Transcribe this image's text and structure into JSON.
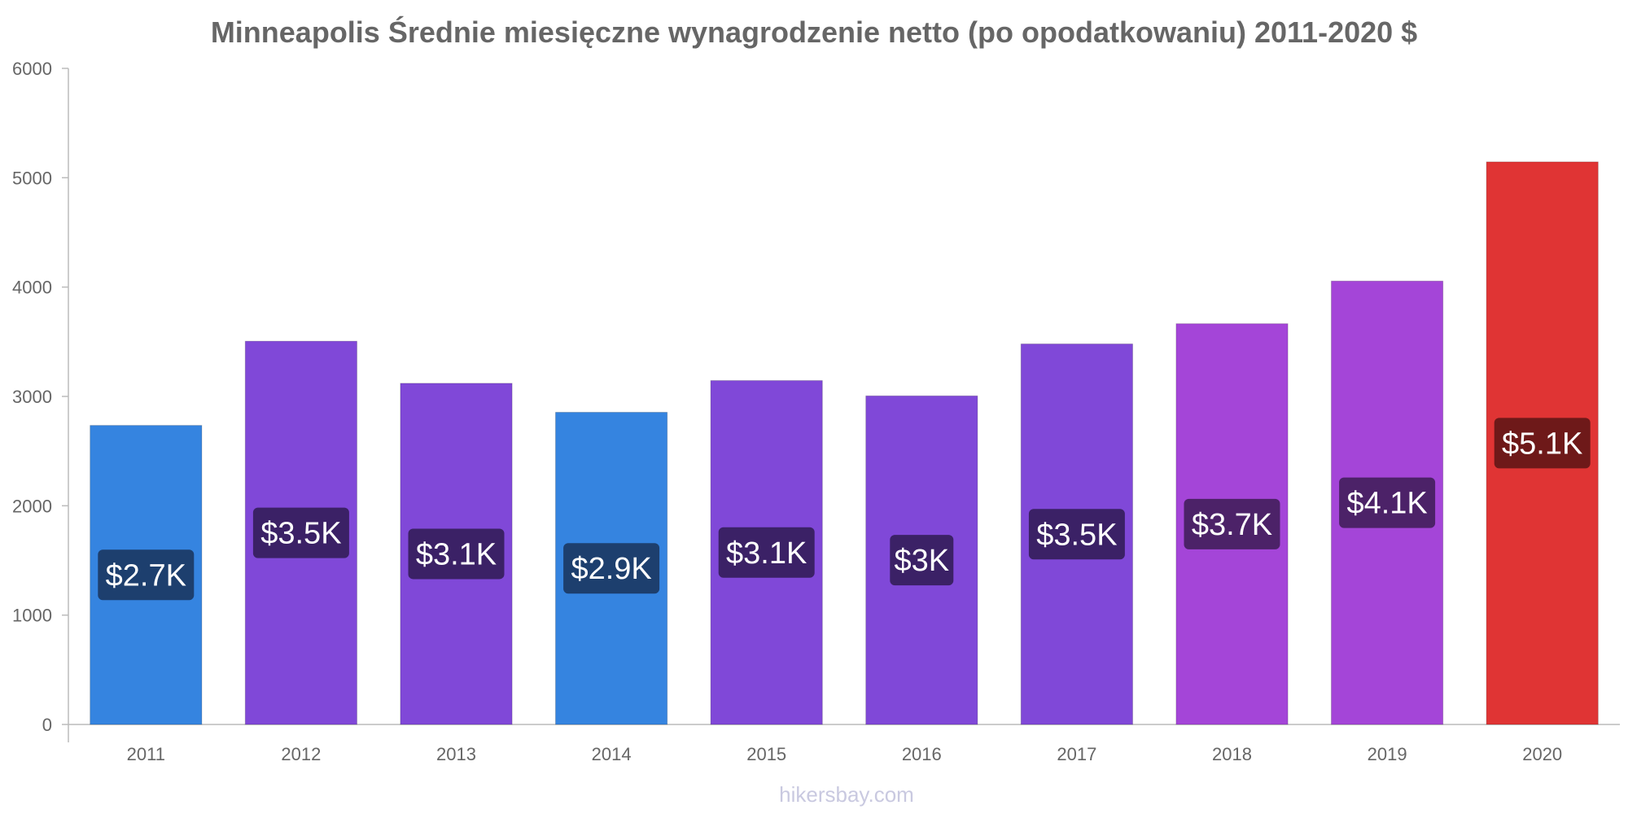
{
  "chart_data": {
    "type": "bar",
    "title": "Minneapolis Średnie miesięczne wynagrodzenie netto (po opodatkowaniu) 2011-2020 $",
    "xlabel": "",
    "ylabel": "",
    "categories": [
      "2011",
      "2012",
      "2013",
      "2014",
      "2015",
      "2016",
      "2017",
      "2018",
      "2019",
      "2020"
    ],
    "values": [
      2735,
      3505,
      3120,
      2855,
      3145,
      3005,
      3480,
      3665,
      4055,
      5145
    ],
    "data_labels": [
      "$2.7K",
      "$3.5K",
      "$3.1K",
      "$2.9K",
      "$3.1K",
      "$3K",
      "$3.5K",
      "$3.7K",
      "$4.1K",
      "$5.1K"
    ],
    "bar_colors": [
      "#3584e0",
      "#8048d8",
      "#8048d8",
      "#3584e0",
      "#8048d8",
      "#8048d8",
      "#8048d8",
      "#a445d8",
      "#a445d8",
      "#e03434"
    ],
    "label_bg_colors": [
      "#1d3f6e",
      "#3b2166",
      "#3b2166",
      "#1d3f6e",
      "#3b2166",
      "#3b2166",
      "#3b2166",
      "#4c2268",
      "#4c2268",
      "#6e1919"
    ],
    "ylim": [
      0,
      6000
    ],
    "yticks": [
      "0",
      "1000",
      "2000",
      "3000",
      "4000",
      "5000",
      "6000"
    ],
    "grid": false,
    "legend": "none"
  },
  "watermark": "hikersbay.com"
}
